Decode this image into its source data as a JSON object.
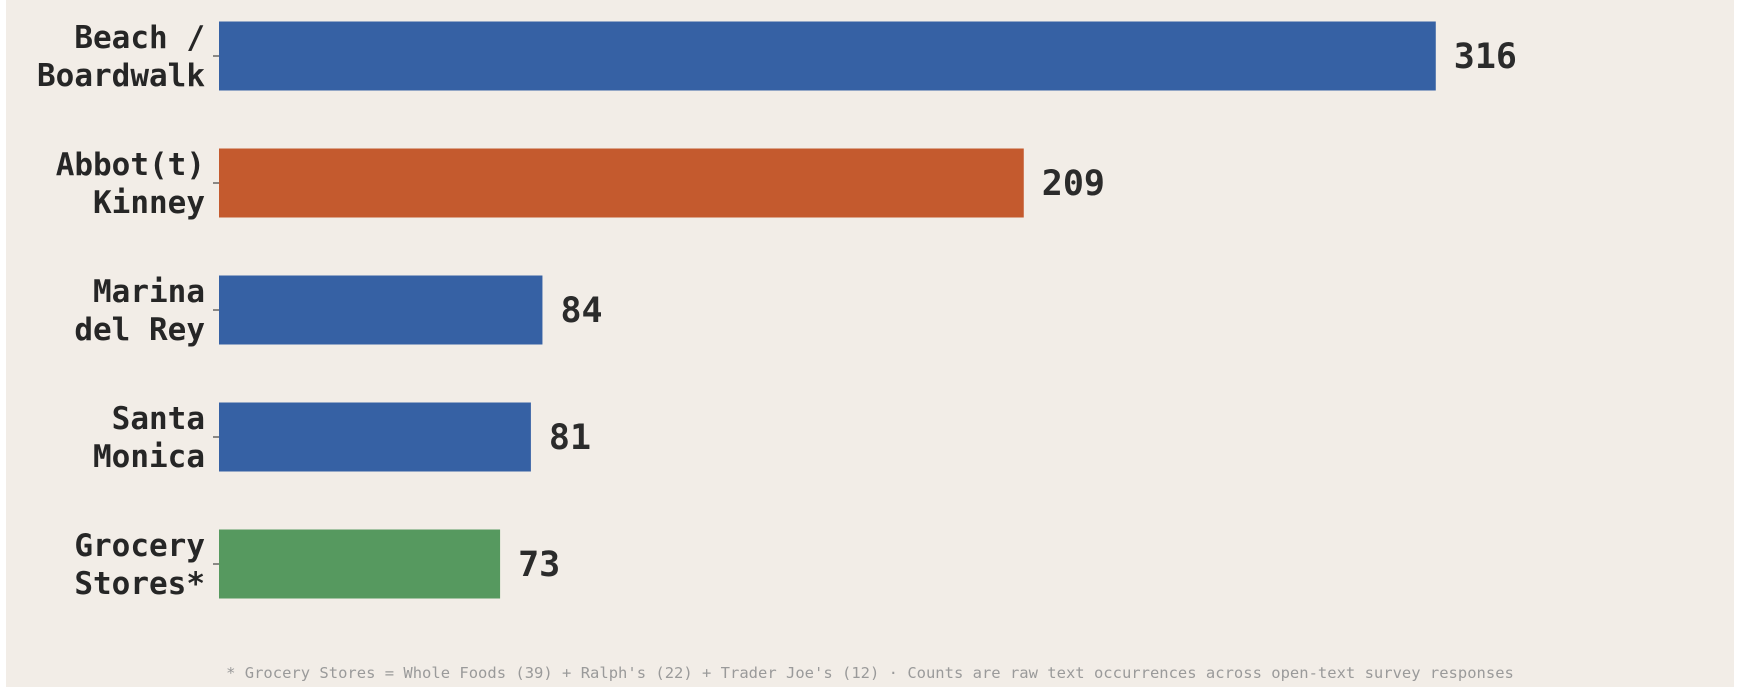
{
  "chart_data": {
    "type": "bar",
    "orientation": "horizontal",
    "categories": [
      [
        "Beach /",
        "Boardwalk"
      ],
      [
        "Abbot(t)",
        "Kinney"
      ],
      [
        "Marina",
        "del Rey"
      ],
      [
        "Santa",
        "Monica"
      ],
      [
        "Grocery",
        "Stores*"
      ]
    ],
    "values": [
      316,
      209,
      84,
      81,
      73
    ],
    "value_labels": [
      "316",
      "209",
      "84",
      "81",
      "73"
    ],
    "colors": [
      "#3661a4",
      "#c45a2e",
      "#3661a4",
      "#3661a4",
      "#56995f"
    ],
    "xlim": [
      0,
      368
    ],
    "grid": false,
    "legend": "none",
    "footnote": "* Grocery Stores = Whole Foods (39) + Ralph's (22) + Trader Joe's (12)  ·  Counts are raw text occurrences across open-text survey responses"
  }
}
